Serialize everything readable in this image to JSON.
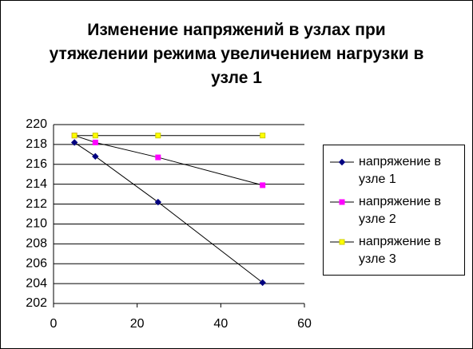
{
  "chart_data": {
    "type": "line",
    "title": "Изменение напряжений  в узлах при утяжелении режима увеличением нагрузки  в узле 1",
    "x": [
      5,
      10,
      25,
      50
    ],
    "series": [
      {
        "name": "напряжение в узле 1",
        "color": "#000080",
        "marker": "diamond",
        "values": [
          218.2,
          216.8,
          212.2,
          204.1
        ]
      },
      {
        "name": "напряжение  в узле 2",
        "color": "#ff00ff",
        "marker": "square",
        "values": [
          218.9,
          218.2,
          216.7,
          213.9
        ]
      },
      {
        "name": "напряжение  в узле  3",
        "color": "#ffff00",
        "marker": "square",
        "values": [
          218.9,
          218.9,
          218.9,
          218.9
        ]
      }
    ],
    "xlim": [
      0,
      60
    ],
    "xticks": [
      0,
      20,
      40,
      60
    ],
    "ylim": [
      202,
      220
    ],
    "yticks": [
      202,
      204,
      206,
      208,
      210,
      212,
      214,
      216,
      218,
      220
    ],
    "grid": true,
    "legend": "right"
  }
}
